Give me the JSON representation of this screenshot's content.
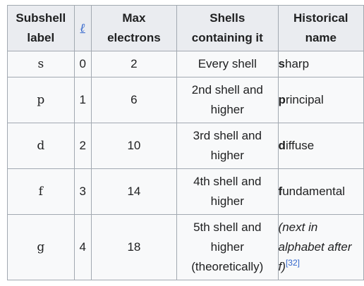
{
  "table": {
    "headers": {
      "label_line1": "Subshell",
      "label_line2": "label",
      "ell": "ℓ",
      "max_line1": "Max",
      "max_line2": "electrons",
      "shells_line1": "Shells",
      "shells_line2": "containing it",
      "hist_line1": "Historical",
      "hist_line2": "name"
    },
    "rows": [
      {
        "label": "s",
        "l": "0",
        "max": "2",
        "shells": [
          "Every shell"
        ],
        "name_first": "s",
        "name_rest": "harp"
      },
      {
        "label": "p",
        "l": "1",
        "max": "6",
        "shells": [
          "2nd shell and",
          "higher"
        ],
        "name_first": "p",
        "name_rest": "rincipal"
      },
      {
        "label": "d",
        "l": "2",
        "max": "10",
        "shells": [
          "3rd shell and",
          "higher"
        ],
        "name_first": "d",
        "name_rest": "iffuse"
      },
      {
        "label": "f",
        "l": "3",
        "max": "14",
        "shells": [
          "4th shell and",
          "higher"
        ],
        "name_first": "f",
        "name_rest": "undamental"
      },
      {
        "label": "g",
        "l": "4",
        "max": "18",
        "shells": [
          "5th shell and",
          "higher",
          "(theoretically)"
        ],
        "name_note": [
          "(next in",
          "alphabet after",
          "f)"
        ],
        "name_ref": "[32]"
      }
    ]
  }
}
